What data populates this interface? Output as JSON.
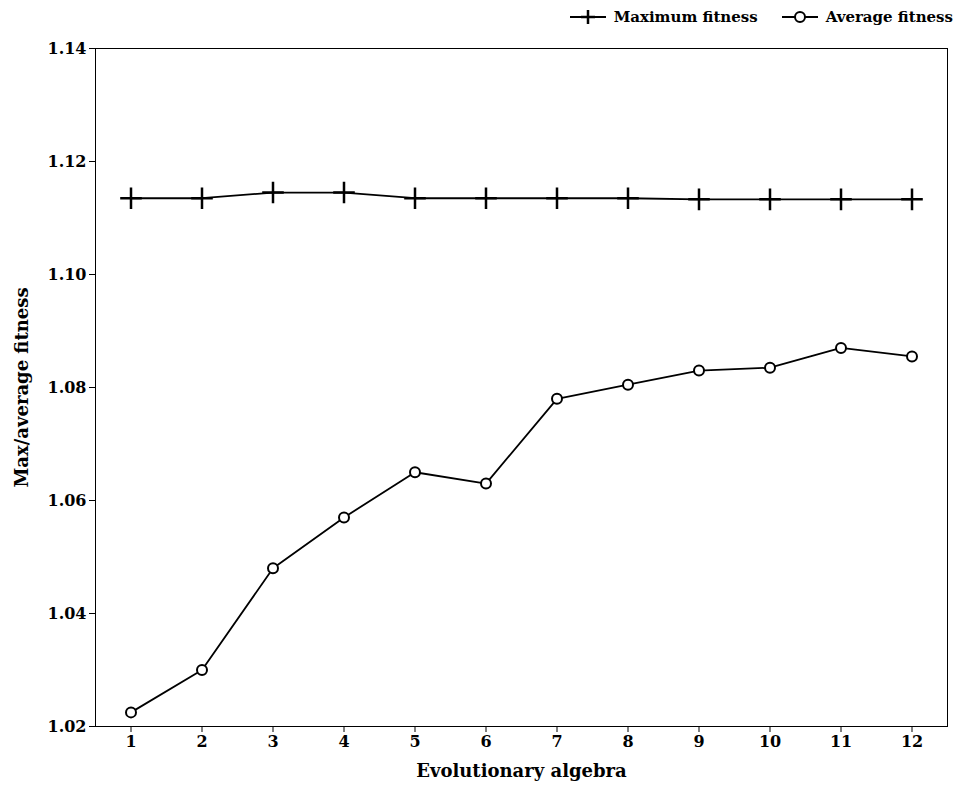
{
  "chart_data": {
    "type": "line",
    "x": [
      1,
      2,
      3,
      4,
      5,
      6,
      7,
      8,
      9,
      10,
      11,
      12
    ],
    "series": [
      {
        "name": "Maximum fitness",
        "color": "#000000",
        "marker": "plus",
        "values": [
          1.1135,
          1.1135,
          1.1145,
          1.1145,
          1.1135,
          1.1135,
          1.1135,
          1.1135,
          1.1133,
          1.1133,
          1.1133,
          1.1133
        ]
      },
      {
        "name": "Average fitness",
        "color": "#000000",
        "marker": "circle",
        "values": [
          1.0225,
          1.03,
          1.048,
          1.057,
          1.065,
          1.063,
          1.078,
          1.0805,
          1.083,
          1.0835,
          1.087,
          1.0855
        ]
      }
    ],
    "xlabel": "Evolutionary algebra",
    "ylabel": "Max/average fitness",
    "xlim": [
      0.5,
      12.5
    ],
    "ylim": [
      1.02,
      1.14
    ],
    "xticks": [
      1,
      2,
      3,
      4,
      5,
      6,
      7,
      8,
      9,
      10,
      11,
      12
    ],
    "yticks": [
      1.02,
      1.04,
      1.06,
      1.08,
      {
        "value": 1.1,
        "label": "1.10"
      },
      1.12,
      1.14
    ],
    "legend": "upper right",
    "grid": false
  }
}
